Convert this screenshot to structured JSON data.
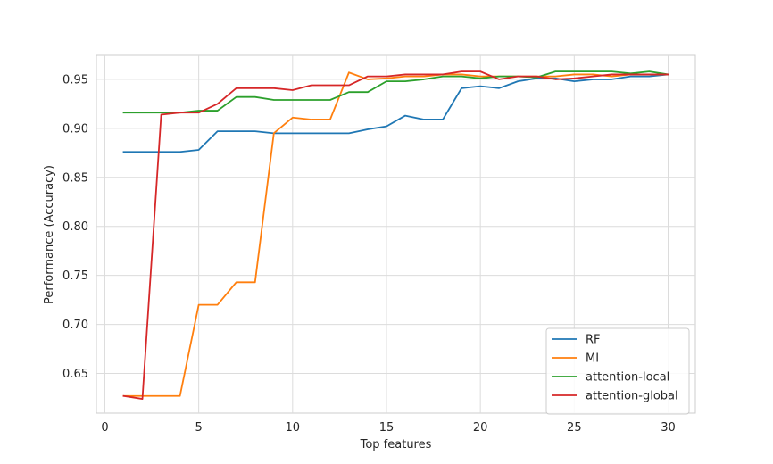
{
  "chart_data": {
    "type": "line",
    "xlabel": "Top features",
    "ylabel": "Performance  (Accuracy)",
    "xlim": [
      -0.45,
      31.45
    ],
    "ylim": [
      0.6095,
      0.9745
    ],
    "xticks": [
      0,
      5,
      10,
      15,
      20,
      25,
      30
    ],
    "yticks": [
      0.65,
      0.7,
      0.75,
      0.8,
      0.85,
      0.9,
      0.95
    ],
    "ytick_labels": [
      "0.65",
      "0.70",
      "0.75",
      "0.80",
      "0.85",
      "0.90",
      "0.95"
    ],
    "grid": true,
    "legend_position": "bottom-right",
    "x": [
      1,
      2,
      3,
      4,
      5,
      6,
      7,
      8,
      9,
      10,
      11,
      12,
      13,
      14,
      15,
      16,
      17,
      18,
      19,
      20,
      21,
      22,
      23,
      24,
      25,
      26,
      27,
      28,
      29,
      30
    ],
    "series": [
      {
        "name": "RF",
        "color": "#1f77b4",
        "values": [
          0.876,
          0.876,
          0.876,
          0.876,
          0.878,
          0.897,
          0.897,
          0.897,
          0.895,
          0.895,
          0.895,
          0.895,
          0.895,
          0.899,
          0.902,
          0.913,
          0.909,
          0.909,
          0.941,
          0.943,
          0.941,
          0.948,
          0.951,
          0.951,
          0.948,
          0.95,
          0.95,
          0.953,
          0.953,
          0.955
        ]
      },
      {
        "name": "MI",
        "color": "#ff7f0e",
        "values": [
          0.627,
          0.627,
          0.627,
          0.627,
          0.72,
          0.72,
          0.743,
          0.743,
          0.895,
          0.911,
          0.909,
          0.909,
          0.957,
          0.95,
          0.951,
          0.953,
          0.953,
          0.955,
          0.955,
          0.953,
          0.953,
          0.953,
          0.953,
          0.953,
          0.955,
          0.955,
          0.953,
          0.955,
          0.955,
          0.955
        ]
      },
      {
        "name": "attention-local",
        "color": "#2ca02c",
        "values": [
          0.916,
          0.916,
          0.916,
          0.916,
          0.918,
          0.918,
          0.932,
          0.932,
          0.929,
          0.929,
          0.929,
          0.929,
          0.937,
          0.937,
          0.948,
          0.948,
          0.95,
          0.953,
          0.953,
          0.951,
          0.953,
          0.953,
          0.952,
          0.958,
          0.958,
          0.958,
          0.958,
          0.956,
          0.958,
          0.955
        ]
      },
      {
        "name": "attention-global",
        "color": "#d62728",
        "values": [
          0.627,
          0.624,
          0.914,
          0.916,
          0.916,
          0.925,
          0.941,
          0.941,
          0.941,
          0.939,
          0.944,
          0.944,
          0.944,
          0.953,
          0.953,
          0.955,
          0.955,
          0.955,
          0.958,
          0.958,
          0.95,
          0.953,
          0.953,
          0.95,
          0.951,
          0.953,
          0.955,
          0.955,
          0.955,
          0.955
        ]
      }
    ]
  }
}
